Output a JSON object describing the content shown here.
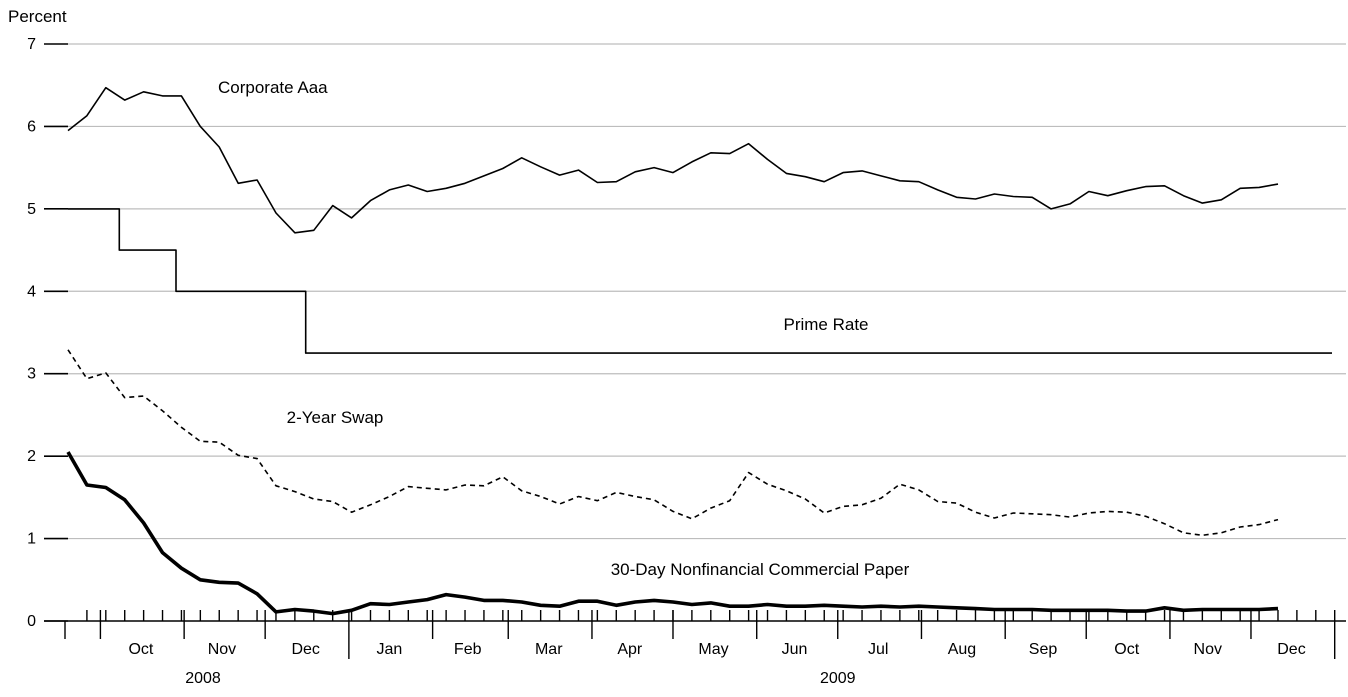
{
  "chart_data": {
    "type": "line",
    "ylabel": "Percent",
    "ylim": [
      0,
      7
    ],
    "yticks": [
      0,
      1,
      2,
      3,
      4,
      5,
      6,
      7
    ],
    "grid": "horizontal",
    "x_unit": "weeks",
    "xlim": [
      "2008-09-19",
      "2009-12-31"
    ],
    "month_labels": [
      {
        "label": "Oct",
        "mid": "2008-10-16"
      },
      {
        "label": "Nov",
        "mid": "2008-11-15"
      },
      {
        "label": "Dec",
        "mid": "2008-12-16"
      },
      {
        "label": "Jan",
        "mid": "2009-01-16"
      },
      {
        "label": "Feb",
        "mid": "2009-02-14"
      },
      {
        "label": "Mar",
        "mid": "2009-03-16"
      },
      {
        "label": "Apr",
        "mid": "2009-04-15"
      },
      {
        "label": "May",
        "mid": "2009-05-16"
      },
      {
        "label": "Jun",
        "mid": "2009-06-15"
      },
      {
        "label": "Jul",
        "mid": "2009-07-16"
      },
      {
        "label": "Aug",
        "mid": "2009-08-16"
      },
      {
        "label": "Sep",
        "mid": "2009-09-15"
      },
      {
        "label": "Oct",
        "mid": "2009-10-16"
      },
      {
        "label": "Nov",
        "mid": "2009-11-15"
      },
      {
        "label": "Dec",
        "mid": "2009-12-16"
      }
    ],
    "year_labels": [
      {
        "label": "2008",
        "mid": "2008-11-08"
      },
      {
        "label": "2009",
        "mid": "2009-07-01"
      }
    ],
    "series": [
      {
        "name": "Corporate Aaa",
        "style": "solid",
        "x_start": "2008-09-19",
        "x_step_days": 7,
        "values": [
          5.95,
          6.13,
          6.47,
          6.32,
          6.42,
          6.37,
          6.37,
          6.0,
          5.75,
          5.31,
          5.35,
          4.95,
          4.71,
          4.74,
          5.04,
          4.89,
          5.1,
          5.23,
          5.29,
          5.21,
          5.25,
          5.31,
          5.4,
          5.49,
          5.62,
          5.51,
          5.41,
          5.47,
          5.32,
          5.33,
          5.45,
          5.5,
          5.44,
          5.57,
          5.68,
          5.67,
          5.79,
          5.6,
          5.43,
          5.39,
          5.33,
          5.44,
          5.46,
          5.4,
          5.34,
          5.33,
          5.23,
          5.14,
          5.12,
          5.18,
          5.15,
          5.14,
          5.0,
          5.06,
          5.21,
          5.16,
          5.22,
          5.27,
          5.28,
          5.16,
          5.07,
          5.11,
          5.25,
          5.26,
          5.3
        ]
      },
      {
        "name": "Prime Rate",
        "style": "step",
        "points": [
          {
            "x": "2008-09-19",
            "y": 5.0
          },
          {
            "x": "2008-10-08",
            "y": 4.5
          },
          {
            "x": "2008-10-29",
            "y": 4.0
          },
          {
            "x": "2008-12-16",
            "y": 3.25
          },
          {
            "x": "2009-12-31",
            "y": 3.25
          }
        ]
      },
      {
        "name": "2-Year Swap",
        "style": "dashed",
        "x_start": "2008-09-19",
        "x_step_days": 7,
        "values": [
          3.29,
          2.94,
          3.01,
          2.71,
          2.73,
          2.55,
          2.35,
          2.18,
          2.17,
          2.01,
          1.97,
          1.64,
          1.57,
          1.48,
          1.45,
          1.32,
          1.41,
          1.51,
          1.63,
          1.61,
          1.59,
          1.65,
          1.64,
          1.75,
          1.58,
          1.51,
          1.42,
          1.51,
          1.46,
          1.56,
          1.51,
          1.47,
          1.33,
          1.24,
          1.37,
          1.46,
          1.8,
          1.66,
          1.58,
          1.48,
          1.31,
          1.39,
          1.41,
          1.49,
          1.66,
          1.59,
          1.45,
          1.43,
          1.32,
          1.25,
          1.31,
          1.3,
          1.29,
          1.26,
          1.31,
          1.33,
          1.32,
          1.27,
          1.18,
          1.07,
          1.04,
          1.07,
          1.14,
          1.17,
          1.23
        ]
      },
      {
        "name": "30-Day Nonfinancial Commercial Paper",
        "style": "bold",
        "x_start": "2008-09-19",
        "x_step_days": 7,
        "values": [
          2.05,
          1.65,
          1.62,
          1.47,
          1.19,
          0.83,
          0.64,
          0.5,
          0.47,
          0.46,
          0.33,
          0.11,
          0.14,
          0.12,
          0.09,
          0.13,
          0.21,
          0.2,
          0.23,
          0.26,
          0.32,
          0.29,
          0.25,
          0.25,
          0.23,
          0.19,
          0.18,
          0.24,
          0.24,
          0.19,
          0.23,
          0.25,
          0.23,
          0.2,
          0.22,
          0.18,
          0.18,
          0.2,
          0.18,
          0.18,
          0.19,
          0.18,
          0.17,
          0.18,
          0.17,
          0.18,
          0.17,
          0.16,
          0.15,
          0.14,
          0.14,
          0.14,
          0.13,
          0.13,
          0.13,
          0.13,
          0.12,
          0.12,
          0.16,
          0.13,
          0.14,
          0.14,
          0.14,
          0.14,
          0.15
        ]
      }
    ],
    "annotations": [
      {
        "text": "Corporate Aaa",
        "series": 0
      },
      {
        "text": "Prime Rate",
        "series": 1
      },
      {
        "text": "2-Year Swap",
        "series": 2
      },
      {
        "text": "30-Day Nonfinancial Commercial Paper",
        "series": 3
      }
    ]
  }
}
